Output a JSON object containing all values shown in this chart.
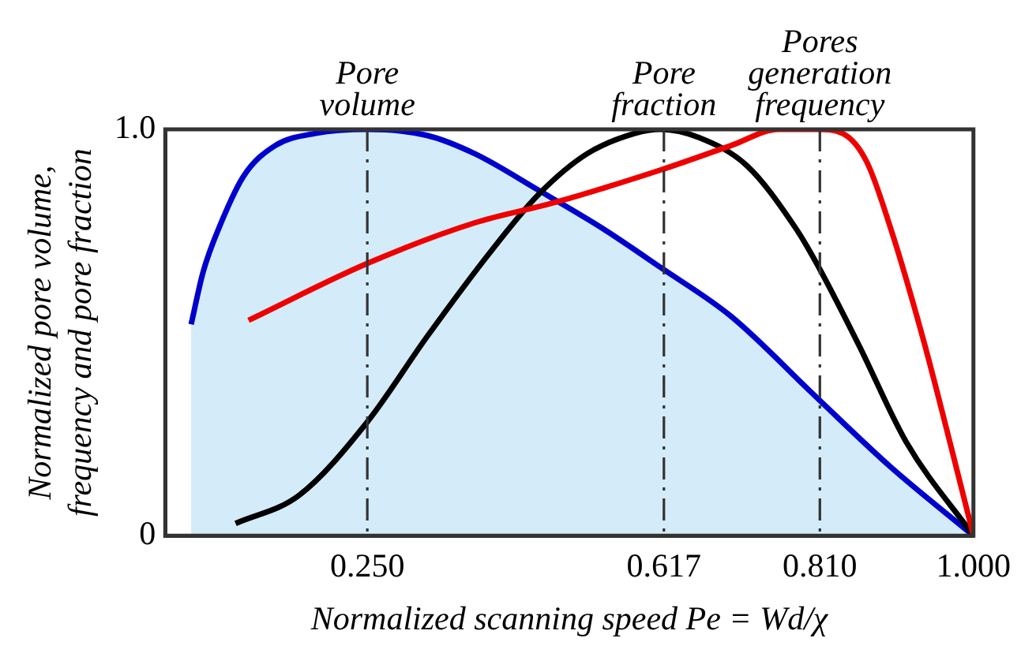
{
  "chart_data": {
    "type": "line",
    "xlabel": "Normalized scanning speed Pe = Wd/χ",
    "ylabel": "Normalized pore volume, frequency and pore fraction",
    "xlim": [
      0,
      1
    ],
    "xticks": [
      {
        "value": 0.25,
        "label": "0.250"
      },
      {
        "value": 0.617,
        "label": "0.617"
      },
      {
        "value": 0.81,
        "label": "0.810"
      },
      {
        "value": 1,
        "label": "1.000"
      }
    ],
    "ylim": [
      0,
      1
    ],
    "yticks": [
      0,
      {
        "value": 1,
        "label": "1.0"
      }
    ],
    "grid": false,
    "legend": false,
    "marker": "none",
    "line_style": "solid",
    "series": [
      {
        "type": "area",
        "color": "#0000cc",
        "x": [
          0.032,
          0.047,
          0.067,
          0.097,
          0.136,
          0.186,
          0.25,
          0.324,
          0.383,
          0.462,
          0.542,
          0.613,
          0.7,
          0.806,
          0.897,
          1.0
        ],
        "values": [
          0.52,
          0.65,
          0.76,
          0.885,
          0.96,
          0.99,
          1.0,
          0.985,
          0.94,
          0.85,
          0.755,
          0.66,
          0.54,
          0.34,
          0.17,
          0
        ]
      },
      {
        "color": "#000000",
        "x": [
          0.087,
          0.166,
          0.25,
          0.324,
          0.403,
          0.462,
          0.522,
          0.581,
          0.613,
          0.66,
          0.72,
          0.779,
          0.806,
          0.858,
          0.917,
          1.0
        ],
        "values": [
          0.03,
          0.1,
          0.28,
          0.49,
          0.7,
          0.84,
          0.94,
          0.99,
          1.0,
          0.98,
          0.91,
          0.76,
          0.67,
          0.47,
          0.23,
          0
        ]
      },
      {
        "color": "#ee0000",
        "x": [
          0.103,
          0.25,
          0.383,
          0.482,
          0.613,
          0.7,
          0.759,
          0.806,
          0.838,
          0.868,
          0.897,
          0.937,
          0.976,
          1.0
        ],
        "values": [
          0.53,
          0.67,
          0.77,
          0.82,
          0.9,
          0.96,
          1.0,
          1.0,
          0.99,
          0.92,
          0.76,
          0.49,
          0.19,
          0
        ]
      }
    ],
    "ref_lines": [
      {
        "axis": "x",
        "value": 0.25,
        "label": "Pore volume",
        "line_style": "dashed",
        "color": "#333333"
      },
      {
        "axis": "x",
        "value": 0.617,
        "label": "Pore fraction",
        "line_style": "dashed",
        "color": "#333333"
      },
      {
        "axis": "x",
        "value": 0.81,
        "label": "Pores generation frequency",
        "line_style": "dashed",
        "color": "#333333"
      }
    ]
  }
}
